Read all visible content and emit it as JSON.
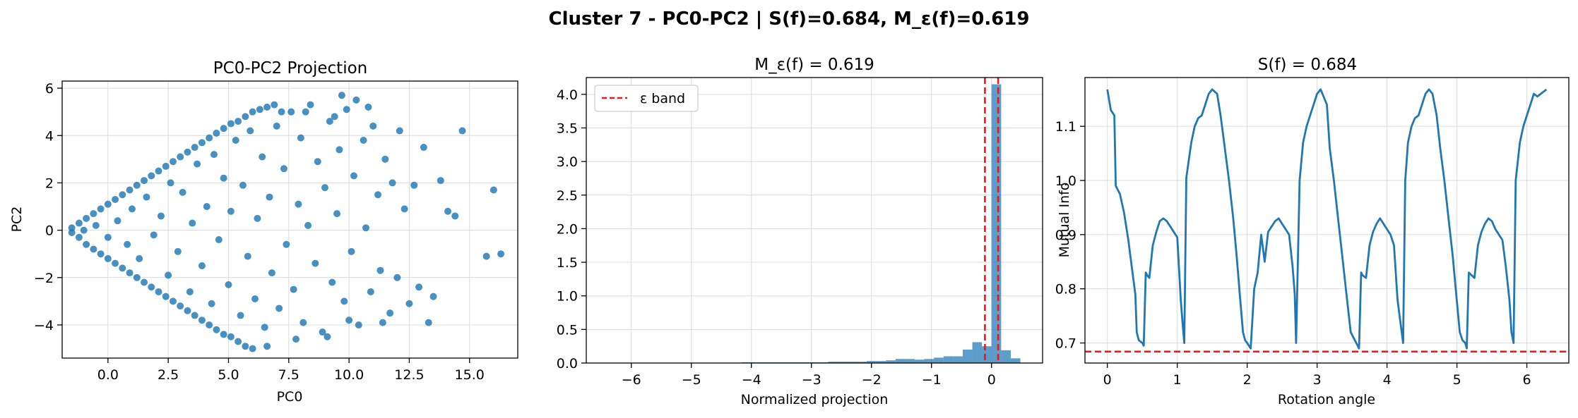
{
  "suptitle": "Cluster 7 - PC0-PC2 | S(f)=0.684, M_ε(f)=0.619",
  "colors": {
    "series": "#1f77b4",
    "reference": "#e41a1c",
    "grid": "#dcdcdc"
  },
  "chart_data": [
    {
      "type": "scatter",
      "title": "PC0-PC2 Projection",
      "xlabel": "PC0",
      "ylabel": "PC2",
      "xlim": [
        -1.9,
        17.0
      ],
      "ylim": [
        -5.4,
        6.3
      ],
      "xticks": [
        0.0,
        2.5,
        5.0,
        7.5,
        10.0,
        12.5,
        15.0
      ],
      "xtick_labels": [
        "0.0",
        "2.5",
        "5.0",
        "7.5",
        "10.0",
        "12.5",
        "15.0"
      ],
      "yticks": [
        -4,
        -2,
        0,
        2,
        4,
        6
      ],
      "ytick_labels": [
        "−4",
        "−2",
        "0",
        "2",
        "4",
        "6"
      ],
      "grid": true,
      "series": [
        {
          "points": [
            [
              -1.5,
              0.1
            ],
            [
              -1.2,
              0.3
            ],
            [
              -0.9,
              0.5
            ],
            [
              -0.6,
              0.7
            ],
            [
              -0.3,
              0.9
            ],
            [
              0.0,
              1.1
            ],
            [
              0.3,
              1.3
            ],
            [
              0.6,
              1.5
            ],
            [
              0.9,
              1.7
            ],
            [
              1.2,
              1.9
            ],
            [
              1.5,
              2.1
            ],
            [
              1.8,
              2.3
            ],
            [
              2.1,
              2.5
            ],
            [
              2.4,
              2.7
            ],
            [
              2.7,
              2.9
            ],
            [
              3.0,
              3.1
            ],
            [
              3.3,
              3.3
            ],
            [
              3.6,
              3.5
            ],
            [
              3.9,
              3.7
            ],
            [
              4.2,
              3.9
            ],
            [
              4.5,
              4.1
            ],
            [
              4.8,
              4.3
            ],
            [
              5.1,
              4.5
            ],
            [
              5.4,
              4.6
            ],
            [
              5.7,
              4.8
            ],
            [
              6.0,
              5.0
            ],
            [
              6.3,
              5.1
            ],
            [
              6.6,
              5.2
            ],
            [
              6.9,
              5.3
            ],
            [
              7.2,
              5.0
            ],
            [
              -1.5,
              -0.1
            ],
            [
              -1.2,
              -0.3
            ],
            [
              -0.9,
              -0.6
            ],
            [
              -0.6,
              -0.8
            ],
            [
              -0.3,
              -1.0
            ],
            [
              0.0,
              -1.2
            ],
            [
              0.3,
              -1.4
            ],
            [
              0.6,
              -1.6
            ],
            [
              0.9,
              -1.8
            ],
            [
              1.2,
              -2.0
            ],
            [
              1.5,
              -2.2
            ],
            [
              1.8,
              -2.4
            ],
            [
              2.1,
              -2.6
            ],
            [
              2.4,
              -2.8
            ],
            [
              2.7,
              -3.0
            ],
            [
              3.0,
              -3.2
            ],
            [
              3.3,
              -3.4
            ],
            [
              3.6,
              -3.6
            ],
            [
              3.9,
              -3.8
            ],
            [
              4.2,
              -4.0
            ],
            [
              4.5,
              -4.2
            ],
            [
              4.8,
              -4.4
            ],
            [
              5.1,
              -4.5
            ],
            [
              5.4,
              -4.7
            ],
            [
              5.7,
              -4.9
            ],
            [
              6.0,
              -5.0
            ],
            [
              -1.0,
              0.0
            ],
            [
              -0.5,
              0.2
            ],
            [
              0.0,
              -0.3
            ],
            [
              0.4,
              0.4
            ],
            [
              0.8,
              -0.6
            ],
            [
              1.0,
              0.9
            ],
            [
              1.3,
              -1.2
            ],
            [
              1.6,
              1.4
            ],
            [
              1.9,
              -0.2
            ],
            [
              2.2,
              0.6
            ],
            [
              2.5,
              -1.9
            ],
            [
              2.6,
              2.0
            ],
            [
              2.9,
              -0.9
            ],
            [
              3.1,
              1.6
            ],
            [
              3.4,
              -2.6
            ],
            [
              3.5,
              0.3
            ],
            [
              3.7,
              2.8
            ],
            [
              3.9,
              -1.5
            ],
            [
              4.1,
              1.0
            ],
            [
              4.3,
              -3.1
            ],
            [
              4.4,
              3.2
            ],
            [
              4.6,
              -0.4
            ],
            [
              4.8,
              2.2
            ],
            [
              5.0,
              -2.3
            ],
            [
              5.1,
              0.8
            ],
            [
              5.3,
              3.8
            ],
            [
              5.5,
              -3.6
            ],
            [
              5.6,
              1.9
            ],
            [
              5.8,
              -1.1
            ],
            [
              5.9,
              4.2
            ],
            [
              6.1,
              -2.9
            ],
            [
              6.2,
              0.5
            ],
            [
              6.4,
              3.1
            ],
            [
              6.5,
              -4.1
            ],
            [
              6.7,
              1.4
            ],
            [
              6.8,
              -1.8
            ],
            [
              7.0,
              4.4
            ],
            [
              7.1,
              -3.3
            ],
            [
              7.3,
              2.6
            ],
            [
              7.4,
              -0.6
            ],
            [
              7.6,
              5.0
            ],
            [
              7.7,
              -2.5
            ],
            [
              7.9,
              1.1
            ],
            [
              8.0,
              3.9
            ],
            [
              8.1,
              -3.9
            ],
            [
              8.3,
              0.2
            ],
            [
              8.4,
              5.3
            ],
            [
              8.6,
              -1.4
            ],
            [
              8.7,
              2.9
            ],
            [
              8.9,
              -4.3
            ],
            [
              9.0,
              1.8
            ],
            [
              9.2,
              4.6
            ],
            [
              9.3,
              -2.2
            ],
            [
              9.5,
              0.7
            ],
            [
              9.6,
              3.4
            ],
            [
              9.8,
              -3.0
            ],
            [
              9.9,
              5.1
            ],
            [
              10.1,
              -0.9
            ],
            [
              10.2,
              2.3
            ],
            [
              10.4,
              -4.0
            ],
            [
              10.6,
              3.8
            ],
            [
              10.7,
              0.1
            ],
            [
              10.9,
              -2.6
            ],
            [
              11.0,
              4.4
            ],
            [
              11.2,
              1.5
            ],
            [
              11.3,
              -1.7
            ],
            [
              11.5,
              3.0
            ],
            [
              11.7,
              -3.5
            ],
            [
              11.8,
              2.0
            ],
            [
              12.0,
              -2.0
            ],
            [
              12.1,
              4.2
            ],
            [
              12.3,
              0.9
            ],
            [
              12.5,
              -3.1
            ],
            [
              12.7,
              1.9
            ],
            [
              12.9,
              -2.4
            ],
            [
              13.1,
              3.5
            ],
            [
              13.3,
              -3.9
            ],
            [
              13.5,
              -2.8
            ],
            [
              13.8,
              2.1
            ],
            [
              14.1,
              0.8
            ],
            [
              14.4,
              0.6
            ],
            [
              14.7,
              4.2
            ],
            [
              15.7,
              -1.1
            ],
            [
              16.0,
              1.7
            ],
            [
              16.3,
              -1.0
            ],
            [
              8.2,
              5.0
            ],
            [
              9.7,
              5.7
            ],
            [
              10.3,
              5.5
            ],
            [
              10.8,
              5.2
            ],
            [
              9.4,
              4.8
            ],
            [
              6.6,
              -4.9
            ],
            [
              7.8,
              -4.6
            ],
            [
              9.1,
              -4.5
            ],
            [
              10.0,
              -3.8
            ],
            [
              11.4,
              -3.9
            ]
          ]
        }
      ]
    },
    {
      "type": "bar",
      "title": "M_ε(f) = 0.619",
      "xlabel": "Normalized projection",
      "ylabel": "",
      "xlim": [
        -6.75,
        0.85
      ],
      "ylim": [
        0,
        4.25
      ],
      "xticks": [
        -6,
        -5,
        -4,
        -3,
        -2,
        -1,
        0
      ],
      "xtick_labels": [
        "−6",
        "−5",
        "−4",
        "−3",
        "−2",
        "−1",
        "0"
      ],
      "yticks": [
        0,
        0.5,
        1.0,
        1.5,
        2.0,
        2.5,
        3.0,
        3.5,
        4.0
      ],
      "ytick_labels": [
        "0.0",
        "0.5",
        "1.0",
        "1.5",
        "2.0",
        "2.5",
        "3.0",
        "3.5",
        "4.0"
      ],
      "grid": true,
      "bin_width": 0.16,
      "bin_lefts": [
        -6.4,
        -6.24,
        -6.08,
        -5.92,
        -5.76,
        -5.6,
        -5.44,
        -5.28,
        -5.12,
        -4.96,
        -4.8,
        -4.64,
        -4.48,
        -4.32,
        -4.16,
        -4.0,
        -3.84,
        -3.68,
        -3.52,
        -3.36,
        -3.2,
        -3.04,
        -2.88,
        -2.72,
        -2.56,
        -2.4,
        -2.24,
        -2.08,
        -1.92,
        -1.76,
        -1.6,
        -1.44,
        -1.28,
        -1.12,
        -0.96,
        -0.8,
        -0.64,
        -0.48,
        -0.32,
        -0.16,
        0.0,
        0.16,
        0.32
      ],
      "values": [
        0.003,
        0.003,
        0.003,
        0.003,
        0.003,
        0.003,
        0.003,
        0.003,
        0.003,
        0.003,
        0.003,
        0.003,
        0.003,
        0.003,
        0.01,
        0.01,
        0.01,
        0.01,
        0.01,
        0.01,
        0.01,
        0.01,
        0.01,
        0.02,
        0.02,
        0.02,
        0.02,
        0.03,
        0.03,
        0.04,
        0.06,
        0.06,
        0.05,
        0.06,
        0.08,
        0.1,
        0.1,
        0.2,
        0.31,
        0.25,
        4.15,
        0.19,
        0.07
      ],
      "legend": {
        "label": "ε band",
        "position": "upper-left"
      },
      "reference_lines": [
        {
          "axis": "x",
          "value": -0.11
        },
        {
          "axis": "x",
          "value": 0.11
        }
      ]
    },
    {
      "type": "line",
      "title": "S(f) = 0.684",
      "xlabel": "Rotation angle",
      "ylabel": "Mutual Info",
      "xlim": [
        -0.32,
        6.6
      ],
      "ylim": [
        0.663,
        1.19
      ],
      "xticks": [
        0,
        1,
        2,
        3,
        4,
        5,
        6
      ],
      "xtick_labels": [
        "0",
        "1",
        "2",
        "3",
        "4",
        "5",
        "6"
      ],
      "yticks": [
        0.7,
        0.8,
        0.9,
        1.0,
        1.1
      ],
      "ytick_labels": [
        "0.7",
        "0.8",
        "0.9",
        "1.0",
        "1.1"
      ],
      "grid": true,
      "reference_lines": [
        {
          "axis": "y",
          "value": 0.684
        }
      ],
      "series": [
        {
          "x": [
            0.0,
            0.05,
            0.1,
            0.12,
            0.18,
            0.24,
            0.3,
            0.36,
            0.4,
            0.42,
            0.45,
            0.5,
            0.52,
            0.55,
            0.57,
            0.6,
            0.65,
            0.7,
            0.75,
            0.8,
            0.85,
            0.9,
            0.95,
            1.0,
            1.05,
            1.08,
            1.1,
            1.13,
            1.2,
            1.25,
            1.3,
            1.35,
            1.4,
            1.45,
            1.5,
            1.57,
            1.62,
            1.68,
            1.74,
            1.8,
            1.85,
            1.9,
            1.94,
            1.97,
            2.0,
            2.05,
            2.1,
            2.15,
            2.2,
            2.25,
            2.3,
            2.35,
            2.4,
            2.45,
            2.5,
            2.55,
            2.6,
            2.65,
            2.68,
            2.7,
            2.75,
            2.8,
            2.85,
            2.9,
            2.95,
            3.0,
            3.05,
            3.14,
            3.18,
            3.24,
            3.3,
            3.36,
            3.42,
            3.48,
            3.54,
            3.56,
            3.6,
            3.63,
            3.65,
            3.7,
            3.75,
            3.8,
            3.85,
            3.9,
            3.95,
            4.0,
            4.05,
            4.1,
            4.15,
            4.2,
            4.23,
            4.26,
            4.3,
            4.35,
            4.4,
            4.45,
            4.5,
            4.55,
            4.6,
            4.65,
            4.71,
            4.76,
            4.82,
            4.88,
            4.94,
            4.99,
            5.04,
            5.08,
            5.12,
            5.14,
            5.17,
            5.21,
            5.25,
            5.3,
            5.35,
            5.4,
            5.45,
            5.5,
            5.55,
            5.6,
            5.65,
            5.7,
            5.75,
            5.78,
            5.81,
            5.84,
            5.9,
            5.95,
            6.0,
            6.05,
            6.1,
            6.15,
            6.2,
            6.25,
            6.28
          ],
          "y": [
            1.168,
            1.13,
            1.12,
            0.99,
            0.975,
            0.94,
            0.89,
            0.83,
            0.79,
            0.72,
            0.705,
            0.7,
            0.695,
            0.83,
            0.825,
            0.82,
            0.88,
            0.905,
            0.925,
            0.93,
            0.925,
            0.915,
            0.905,
            0.895,
            0.78,
            0.73,
            0.7,
            1.005,
            1.07,
            1.1,
            1.115,
            1.12,
            1.14,
            1.16,
            1.168,
            1.16,
            1.12,
            1.06,
            1.0,
            0.93,
            0.86,
            0.78,
            0.72,
            0.705,
            0.7,
            0.69,
            0.8,
            0.83,
            0.9,
            0.85,
            0.905,
            0.915,
            0.925,
            0.93,
            0.92,
            0.91,
            0.9,
            0.84,
            0.79,
            0.7,
            1.0,
            1.07,
            1.1,
            1.12,
            1.14,
            1.16,
            1.168,
            1.14,
            1.06,
            1.0,
            0.93,
            0.86,
            0.79,
            0.72,
            0.705,
            0.7,
            0.69,
            0.83,
            0.825,
            0.82,
            0.88,
            0.905,
            0.92,
            0.93,
            0.92,
            0.91,
            0.9,
            0.88,
            0.78,
            0.73,
            0.7,
            1.0,
            1.07,
            1.1,
            1.115,
            1.12,
            1.14,
            1.16,
            1.168,
            1.16,
            1.12,
            1.06,
            1.0,
            0.93,
            0.86,
            0.79,
            0.72,
            0.705,
            0.7,
            0.69,
            0.83,
            0.825,
            0.82,
            0.88,
            0.905,
            0.92,
            0.93,
            0.925,
            0.91,
            0.9,
            0.89,
            0.84,
            0.78,
            0.72,
            0.7,
            1.0,
            1.07,
            1.1,
            1.12,
            1.14,
            1.16,
            1.155,
            1.16,
            1.165,
            1.168
          ]
        }
      ]
    }
  ]
}
